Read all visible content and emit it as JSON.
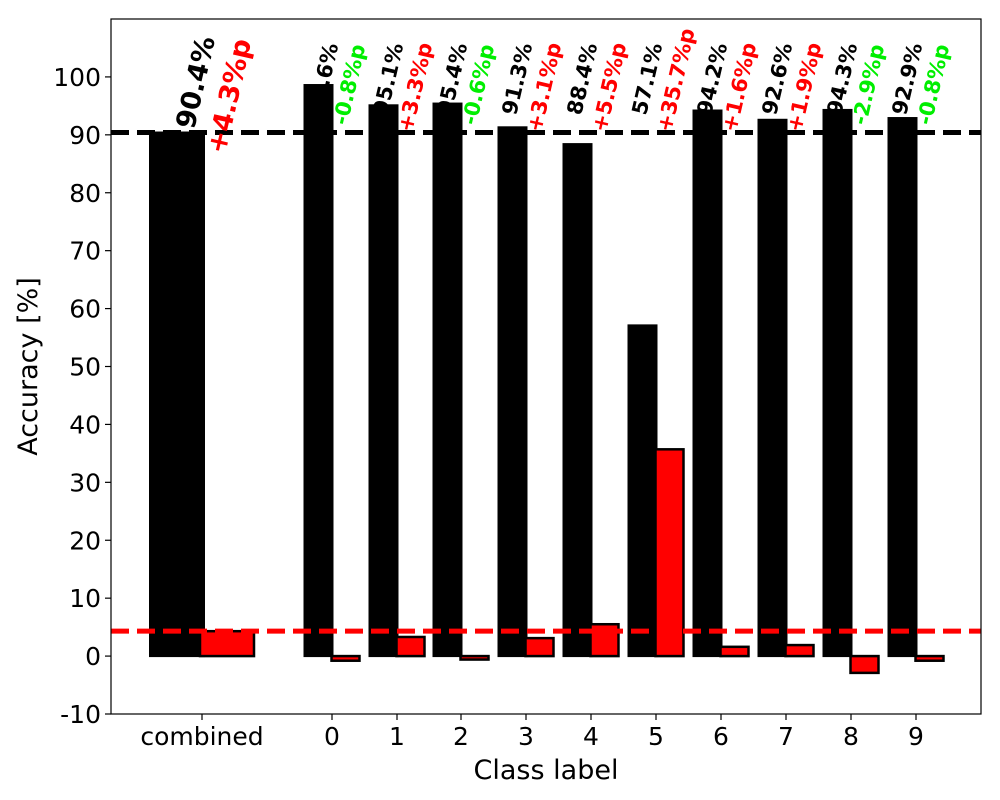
{
  "colors": {
    "accuracy_bar": "#000000",
    "delta_bar": "#ff0000",
    "positive_delta_text": "#ff0000",
    "negative_delta_text": "#00ee00",
    "accuracy_text": "#000000",
    "mean_accuracy_line": "#000000",
    "mean_delta_line": "#ff0000"
  },
  "chart_data": {
    "type": "bar",
    "xlabel": "Class label",
    "ylabel": "Accuracy [%]",
    "ylim": [
      -10,
      110
    ],
    "yticks": [
      -10,
      0,
      10,
      20,
      30,
      40,
      50,
      60,
      70,
      80,
      90,
      100
    ],
    "grid": false,
    "categories": [
      "combined",
      "0",
      "1",
      "2",
      "3",
      "4",
      "5",
      "6",
      "7",
      "8",
      "9"
    ],
    "series": [
      {
        "values": [
          90.4,
          98.6,
          95.1,
          95.4,
          91.3,
          88.4,
          57.1,
          94.2,
          92.6,
          94.3,
          92.9
        ]
      },
      {
        "values": [
          4.3,
          -0.8,
          3.3,
          -0.6,
          3.1,
          5.5,
          35.7,
          1.6,
          1.9,
          -2.9,
          -0.8
        ]
      }
    ],
    "reference_lines": [
      {
        "y": 90.4,
        "style": "dashed",
        "color": "#000000"
      },
      {
        "y": 4.3,
        "style": "dashed",
        "color": "#ff0000"
      }
    ],
    "accuracy_labels": [
      "90.4%",
      "98.6%",
      "95.1%",
      "95.4%",
      "91.3%",
      "88.4%",
      "57.1%",
      "94.2%",
      "92.6%",
      "94.3%",
      "92.9%"
    ],
    "delta_labels": [
      "+4.3%p",
      "-0.8%p",
      "+3.3%p",
      "-0.6%p",
      "+3.1%p",
      "+5.5%p",
      "+35.7%p",
      "+1.6%p",
      "+1.9%p",
      "-2.9%p",
      "-0.8%p"
    ]
  }
}
